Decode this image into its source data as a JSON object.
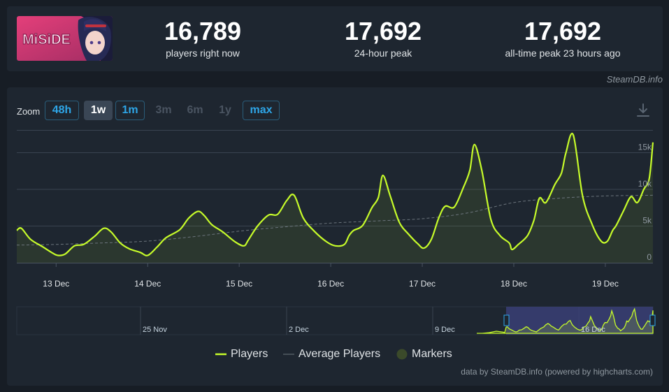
{
  "stats": {
    "current": {
      "value": "16,789",
      "label": "players right now"
    },
    "peak24": {
      "value": "17,692",
      "label": "24-hour peak"
    },
    "alltime": {
      "value": "17,692",
      "label": "all-time peak 23 hours ago"
    }
  },
  "game_logo_text": "MiSiDE",
  "credit_top": "SteamDB.info",
  "zoom": {
    "label": "Zoom",
    "buttons": [
      {
        "label": "48h",
        "state": "outline"
      },
      {
        "label": "1w",
        "state": "active"
      },
      {
        "label": "1m",
        "state": "outline"
      },
      {
        "label": "3m",
        "state": "disabled"
      },
      {
        "label": "6m",
        "state": "disabled"
      },
      {
        "label": "1y",
        "state": "disabled"
      },
      {
        "label": "max",
        "state": "outline"
      }
    ]
  },
  "download_icon": "download-icon",
  "colors": {
    "players": "#c6fb2a",
    "average": "#6c757d",
    "markers": "#3b4a2a",
    "navigator_window": "#3a3f75"
  },
  "legend": {
    "players": "Players",
    "average": "Average Players",
    "markers": "Markers"
  },
  "credit_bottom": "data by SteamDB.info (powered by highcharts.com)",
  "chart_data": {
    "type": "line",
    "x_unit": "days",
    "xlim": [
      12.57,
      19.52
    ],
    "ylim": [
      0,
      18000
    ],
    "grid": true,
    "legend_placement": "bottom-center",
    "x_ticks": [
      {
        "x": 13,
        "label": "13 Dec"
      },
      {
        "x": 14,
        "label": "14 Dec"
      },
      {
        "x": 15,
        "label": "15 Dec"
      },
      {
        "x": 16,
        "label": "16 Dec"
      },
      {
        "x": 17,
        "label": "17 Dec"
      },
      {
        "x": 18,
        "label": "18 Dec"
      },
      {
        "x": 19,
        "label": "19 Dec"
      }
    ],
    "y_ticks": [
      {
        "y": 0,
        "label": "0"
      },
      {
        "y": 5000,
        "label": "5k"
      },
      {
        "y": 10000,
        "label": "10k"
      },
      {
        "y": 15000,
        "label": "15k"
      }
    ],
    "series": [
      {
        "name": "Players",
        "x": [
          12.57,
          12.62,
          12.72,
          12.85,
          12.95,
          13.02,
          13.1,
          13.2,
          13.3,
          13.42,
          13.52,
          13.6,
          13.7,
          13.8,
          13.92,
          14.0,
          14.1,
          14.2,
          14.35,
          14.45,
          14.55,
          14.62,
          14.7,
          14.82,
          14.95,
          15.05,
          15.1,
          15.2,
          15.32,
          15.42,
          15.52,
          15.6,
          15.7,
          15.82,
          15.95,
          16.05,
          16.15,
          16.2,
          16.25,
          16.35,
          16.45,
          16.52,
          16.57,
          16.65,
          16.75,
          16.85,
          16.95,
          17.02,
          17.1,
          17.18,
          17.25,
          17.35,
          17.45,
          17.52,
          17.57,
          17.65,
          17.75,
          17.85,
          17.95,
          17.98,
          18.05,
          18.15,
          18.22,
          18.28,
          18.35,
          18.45,
          18.52,
          18.57,
          18.65,
          18.75,
          18.85,
          18.95,
          19.02,
          19.08,
          19.12,
          19.2,
          19.28,
          19.35,
          19.42,
          19.48,
          19.52
        ],
        "values": [
          4400,
          4700,
          3200,
          2200,
          1400,
          1000,
          1200,
          2300,
          2500,
          3600,
          4700,
          4200,
          2700,
          1900,
          1400,
          1000,
          2100,
          3400,
          4500,
          6100,
          7000,
          6400,
          5200,
          4200,
          2900,
          2300,
          3100,
          5000,
          6500,
          6600,
          8500,
          9200,
          6100,
          4300,
          2900,
          2300,
          2500,
          3700,
          4400,
          5100,
          7500,
          8900,
          11900,
          9100,
          5500,
          3900,
          2600,
          2000,
          3200,
          6100,
          7700,
          7600,
          10300,
          12600,
          16100,
          12600,
          5900,
          3700,
          2700,
          1800,
          2500,
          3700,
          5800,
          8800,
          8200,
          10700,
          12200,
          15000,
          17400,
          9200,
          5400,
          3000,
          2900,
          4400,
          5100,
          7100,
          9000,
          8200,
          10000,
          11500,
          16400
        ]
      },
      {
        "name": "Average Players",
        "x": [
          12.57,
          13.0,
          13.5,
          14.0,
          14.5,
          15.0,
          15.5,
          16.0,
          16.5,
          17.0,
          17.5,
          18.0,
          18.5,
          19.0,
          19.52
        ],
        "values": [
          2400,
          2500,
          2700,
          2950,
          3550,
          4300,
          4900,
          5400,
          5700,
          6000,
          6800,
          8200,
          8800,
          9100,
          9200
        ]
      }
    ],
    "navigator": {
      "x_ticks": [
        {
          "label": "25 Nov"
        },
        {
          "label": "2 Dec"
        },
        {
          "label": "9 Dec"
        },
        {
          "label": "16 Dec"
        }
      ]
    }
  }
}
